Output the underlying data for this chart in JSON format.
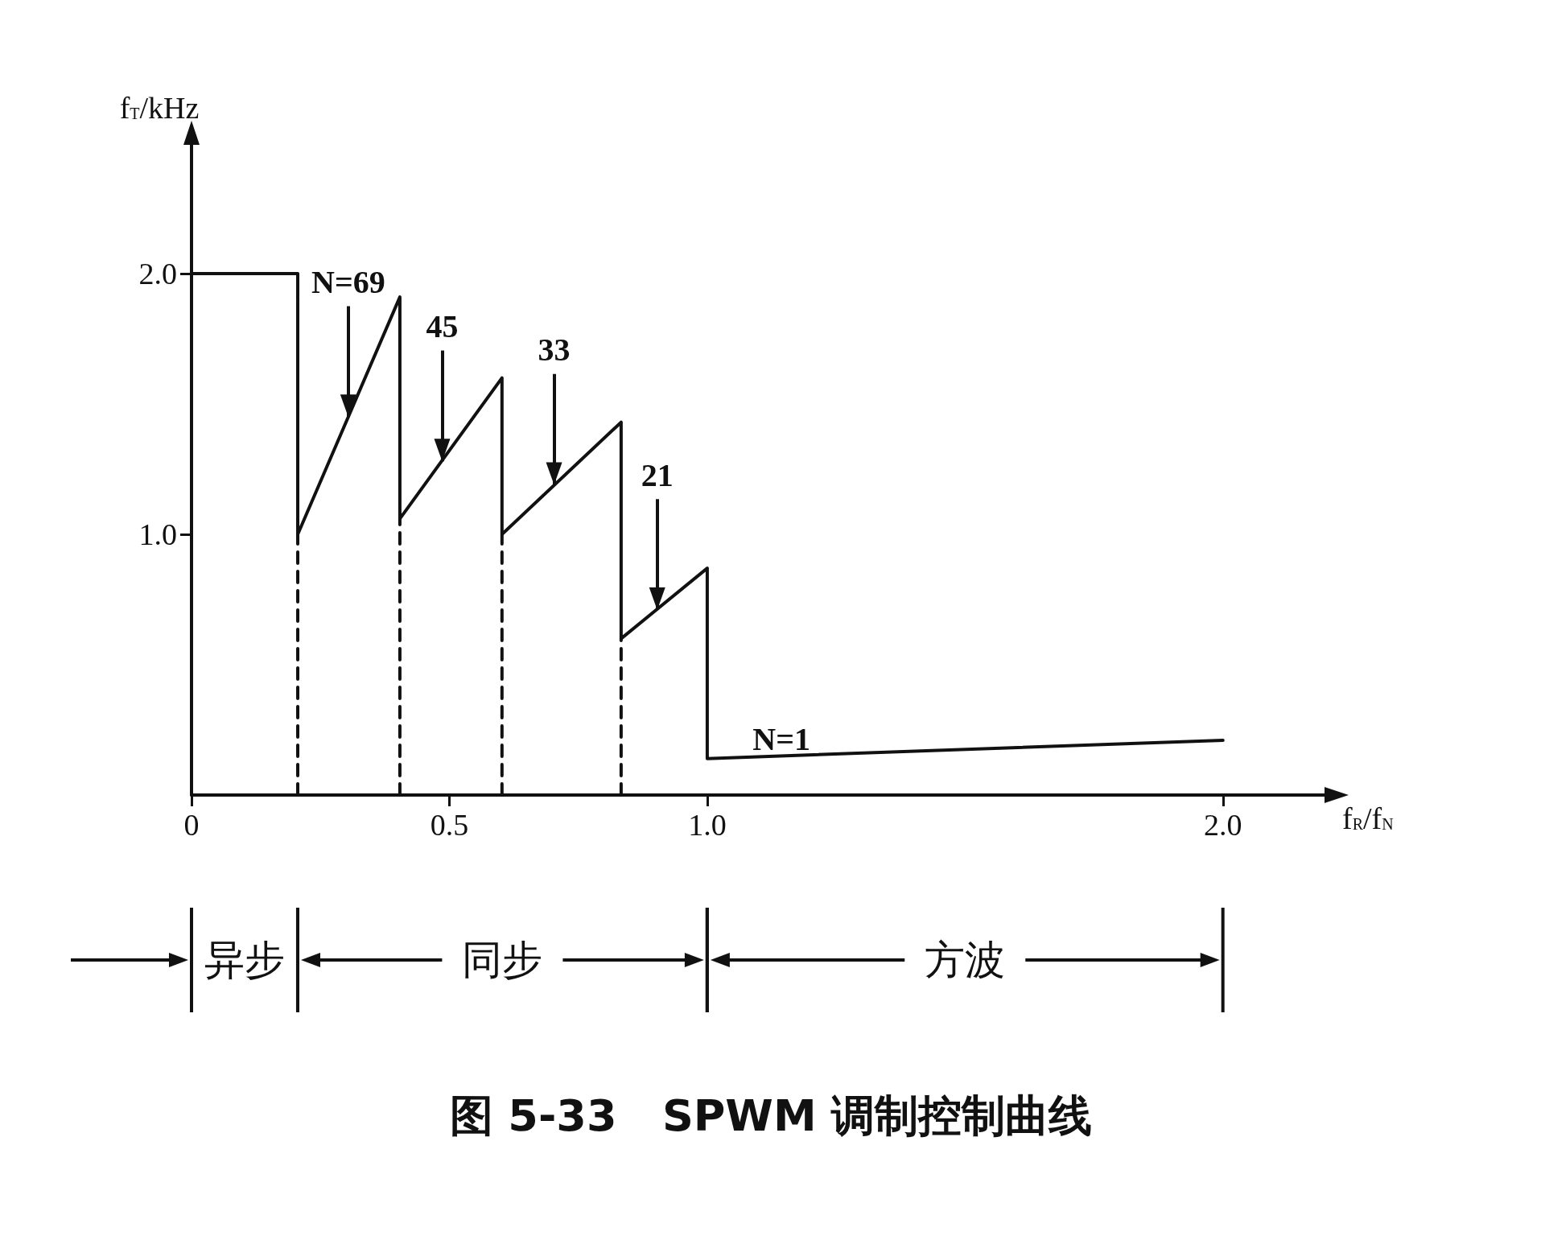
{
  "chart_data": {
    "type": "line",
    "title": "图 5-33   SPWM 调制控制曲线",
    "xlabel": "f$_{R}$/f$_{N}$",
    "ylabel": "f$_{T}$/kHz",
    "xlim": [
      0,
      2.2
    ],
    "ylim": [
      0,
      2.5
    ],
    "xticks": [
      0,
      0.5,
      {
        "value": 1,
        "label": "1.0"
      },
      {
        "value": 2,
        "label": "2.0"
      }
    ],
    "yticks": [
      {
        "value": 1,
        "label": "1.0"
      },
      {
        "value": 2,
        "label": "2.0"
      }
    ],
    "series": [
      {
        "color": "#111111",
        "x": [
          0,
          0.206,
          0.206,
          0.404,
          0.404,
          0.602,
          0.602,
          0.833,
          0.833,
          1.0,
          1.0,
          2.0
        ],
        "values": [
          2.0,
          2.0,
          1.0,
          1.91,
          1.06,
          1.6,
          1.0,
          1.43,
          0.6,
          0.87,
          0.14,
          0.21
        ]
      },
      {
        "color": "#111111",
        "line_style": "dashed",
        "x": [
          0.206,
          0.206
        ],
        "values": [
          0,
          1.0
        ]
      },
      {
        "color": "#111111",
        "line_style": "dashed",
        "x": [
          0.404,
          0.404
        ],
        "values": [
          0,
          1.06
        ]
      },
      {
        "color": "#111111",
        "line_style": "dashed",
        "x": [
          0.602,
          0.602
        ],
        "values": [
          0,
          1.0
        ]
      },
      {
        "color": "#111111",
        "line_style": "dashed",
        "x": [
          0.833,
          0.833
        ],
        "values": [
          0,
          0.6
        ]
      }
    ],
    "annotations": [
      {
        "text": "N=69",
        "x": 0.304,
        "y": 1.45
      },
      {
        "text": "45",
        "x": 0.486,
        "y": 1.28
      },
      {
        "text": "33",
        "x": 0.703,
        "y": 1.19
      },
      {
        "text": "21",
        "x": 0.903,
        "y": 0.71
      },
      "N=1",
      "异步",
      "同步",
      "方波"
    ],
    "grid": false
  }
}
